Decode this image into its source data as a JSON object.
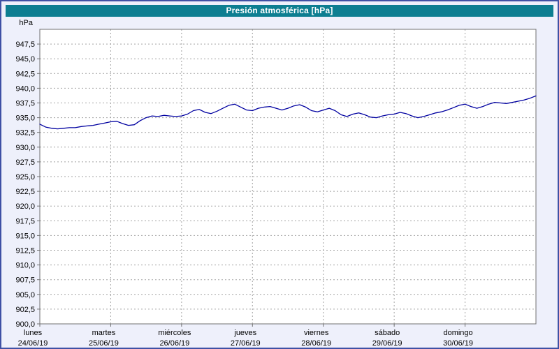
{
  "window": {
    "title": "Presión atmosférica [hPa]"
  },
  "colors": {
    "titlebar_bg": "#0d7e91",
    "titlebar_text": "#ffffff",
    "page_bg": "#eef0fb",
    "outer_border": "#3f51a5",
    "plot_bg": "#ffffff",
    "plot_border": "#707070",
    "grid": "#a3a3a3",
    "line": "#0000a0",
    "label_text": "#000000"
  },
  "chart_data": {
    "type": "line",
    "title": "Presión atmosférica [hPa]",
    "unit_label": "hPa",
    "ylabel": "hPa",
    "xlabel": "",
    "grid": true,
    "legend": "none",
    "ylim": [
      900,
      950
    ],
    "ytick_step": 2.5,
    "yticks": [
      {
        "value": 947.5,
        "label": "947,5"
      },
      {
        "value": 945.0,
        "label": "945,0"
      },
      {
        "value": 942.5,
        "label": "942,5"
      },
      {
        "value": 940.0,
        "label": "940,0"
      },
      {
        "value": 937.5,
        "label": "937,5"
      },
      {
        "value": 935.0,
        "label": "935,0"
      },
      {
        "value": 932.5,
        "label": "932,5"
      },
      {
        "value": 930.0,
        "label": "930,0"
      },
      {
        "value": 927.5,
        "label": "927,5"
      },
      {
        "value": 925.0,
        "label": "925,0"
      },
      {
        "value": 922.5,
        "label": "922,5"
      },
      {
        "value": 920.0,
        "label": "920,0"
      },
      {
        "value": 917.5,
        "label": "917,5"
      },
      {
        "value": 915.0,
        "label": "915,0"
      },
      {
        "value": 912.5,
        "label": "912,5"
      },
      {
        "value": 910.0,
        "label": "910,0"
      },
      {
        "value": 907.5,
        "label": "907,5"
      },
      {
        "value": 905.0,
        "label": "905,0"
      },
      {
        "value": 902.5,
        "label": "902,5"
      },
      {
        "value": 900.0,
        "label": "900,0"
      }
    ],
    "x_days": [
      {
        "name": "lunes",
        "date": "24/06/19"
      },
      {
        "name": "martes",
        "date": "25/06/19"
      },
      {
        "name": "miércoles",
        "date": "26/06/19"
      },
      {
        "name": "jueves",
        "date": "27/06/19"
      },
      {
        "name": "viernes",
        "date": "28/06/19"
      },
      {
        "name": "sábado",
        "date": "29/06/19"
      },
      {
        "name": "domingo",
        "date": "30/06/19"
      }
    ],
    "x_range_days": [
      0,
      7
    ],
    "points_per_day": 12,
    "series": [
      {
        "name": "Presión atmosférica",
        "color": "#0000a0",
        "values": [
          933.9,
          933.4,
          933.2,
          933.1,
          933.2,
          933.3,
          933.3,
          933.5,
          933.6,
          933.7,
          933.9,
          934.1,
          934.3,
          934.4,
          934.0,
          933.7,
          933.8,
          934.5,
          935.0,
          935.3,
          935.2,
          935.4,
          935.3,
          935.2,
          935.3,
          935.6,
          936.2,
          936.4,
          935.9,
          935.7,
          936.1,
          936.6,
          937.1,
          937.3,
          936.8,
          936.3,
          936.2,
          936.6,
          936.8,
          936.9,
          936.6,
          936.3,
          936.6,
          937.0,
          937.2,
          936.8,
          936.2,
          936.0,
          936.3,
          936.6,
          936.2,
          935.5,
          935.2,
          935.6,
          935.8,
          935.5,
          935.1,
          935.0,
          935.3,
          935.5,
          935.6,
          935.9,
          935.7,
          935.3,
          935.0,
          935.2,
          935.5,
          935.8,
          936.0,
          936.3,
          936.7,
          937.1,
          937.3,
          936.9,
          936.6,
          936.9,
          937.3,
          937.6,
          937.5,
          937.4,
          937.6,
          937.8,
          938.0,
          938.3,
          938.7
        ]
      }
    ]
  }
}
